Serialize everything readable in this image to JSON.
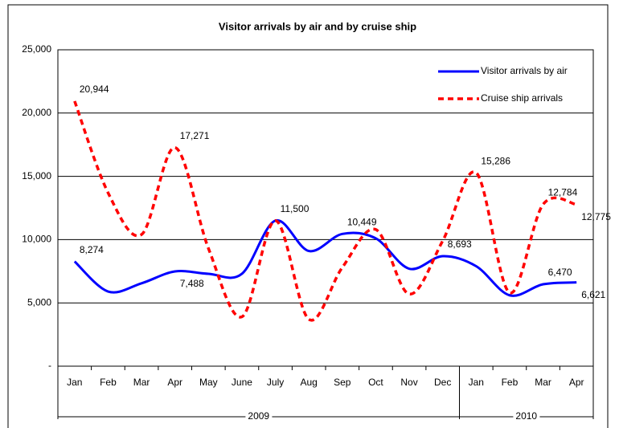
{
  "chart_data": {
    "type": "line",
    "title": "Visitor arrivals by air and by cruise ship",
    "groups": [
      {
        "label": "2009",
        "categories": [
          "Jan",
          "Feb",
          "Mar",
          "Apr",
          "May",
          "June",
          "July",
          "Aug",
          "Sep",
          "Oct",
          "Nov",
          "Dec"
        ]
      },
      {
        "label": "2010",
        "categories": [
          "Jan",
          "Feb",
          "Mar",
          "Apr"
        ]
      }
    ],
    "series": [
      {
        "name": "Visitor arrivals by air",
        "color": "#0000ff",
        "dash": "solid",
        "values": [
          8274,
          5900,
          6550,
          7488,
          7300,
          7300,
          11500,
          9100,
          10449,
          10100,
          7700,
          8693,
          7900,
          5600,
          6470,
          6621
        ],
        "value_labels": [
          "8,274",
          null,
          null,
          "7,488",
          null,
          null,
          "11,500",
          null,
          "10,449",
          null,
          null,
          "8,693",
          null,
          null,
          "6,470",
          "6,621"
        ]
      },
      {
        "name": "Cruise ship arrivals",
        "color": "#ff0000",
        "dash": "dashed",
        "values": [
          20944,
          13700,
          10400,
          17271,
          9300,
          3900,
          11500,
          3700,
          7800,
          10800,
          5700,
          9900,
          15286,
          5800,
          12784,
          12775
        ],
        "value_labels": [
          "20,944",
          null,
          null,
          "17,271",
          null,
          null,
          null,
          null,
          null,
          null,
          null,
          null,
          "15,286",
          null,
          "12,784",
          "12,775"
        ]
      }
    ],
    "ylim": [
      0,
      25000
    ],
    "yticks": [
      {
        "value": 0,
        "label": "-"
      },
      {
        "value": 5000,
        "label": "5,000"
      },
      {
        "value": 10000,
        "label": "10,000"
      },
      {
        "value": 15000,
        "label": "15,000"
      },
      {
        "value": 20000,
        "label": "20,000"
      },
      {
        "value": 25000,
        "label": "25,000"
      }
    ],
    "grid": true,
    "legend": "upper right"
  }
}
